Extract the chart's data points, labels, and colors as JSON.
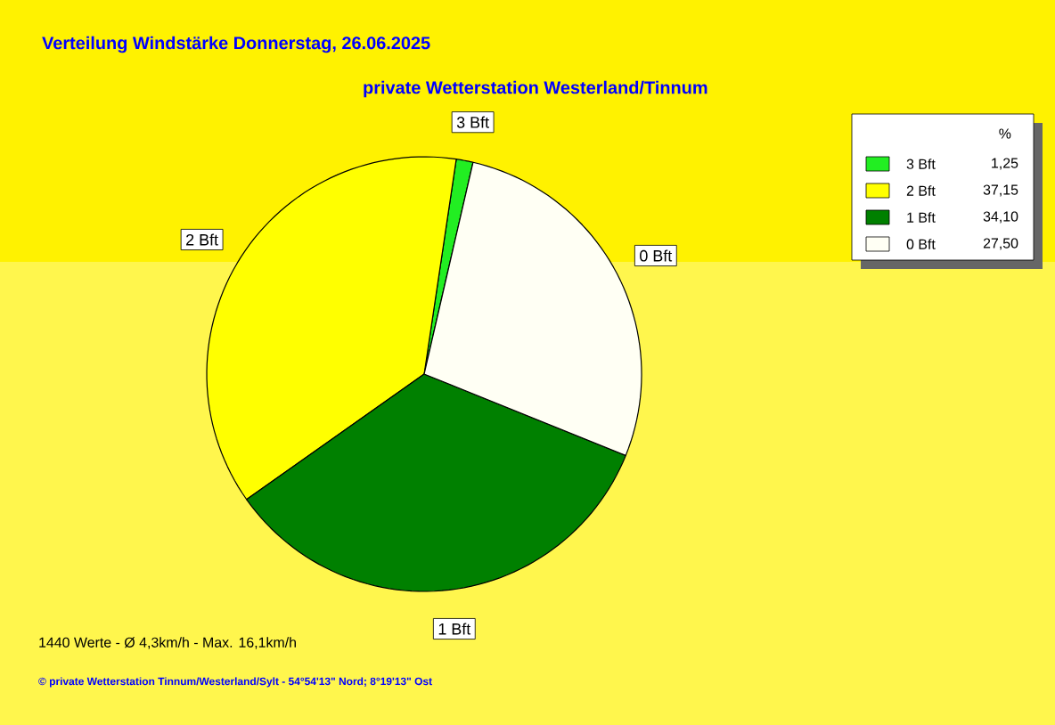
{
  "chart_data": {
    "type": "pie",
    "title": "Verteilung Windstärke  Donnerstag, 26.06.2025",
    "subtitle": "private Wetterstation Westerland/Tinnum",
    "categories": [
      "3 Bft",
      "2 Bft",
      "1 Bft",
      "0 Bft"
    ],
    "values": [
      1.25,
      37.15,
      34.1,
      27.5
    ],
    "value_labels": [
      "1,25",
      "37,15",
      "34,10",
      "27,50"
    ],
    "colors": [
      "#22ee22",
      "#ffff00",
      "#008000",
      "#fffff4"
    ],
    "legend": "top right",
    "legend_title": "%",
    "annotations": [
      "1440 Werte   -   Ø 4,3km/h  -  Max. 16,1km/h",
      "© private Wetterstation Tinnum/Westerland/Sylt   -   54°54'13\" Nord; 8°19'13\" Ost"
    ]
  }
}
